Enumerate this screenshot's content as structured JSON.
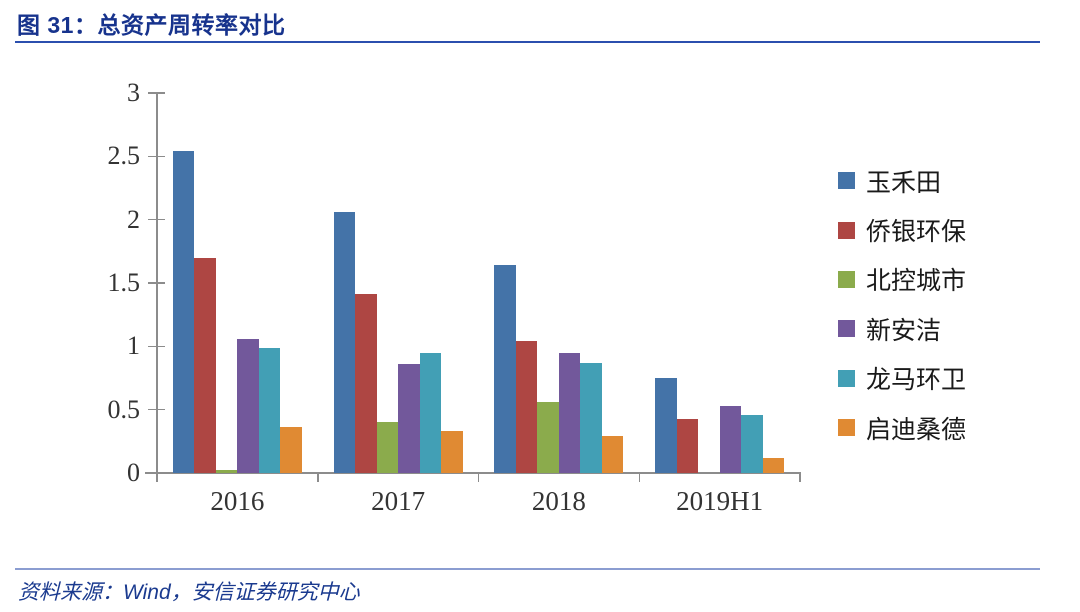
{
  "header": {
    "title": "图 31：总资产周转率对比"
  },
  "footer": {
    "source": "资料来源：Wind，安信证券研究中心"
  },
  "colors": {
    "title_text": "#17338d",
    "title_rule": "#2b4fae",
    "footer_rule": "#8b9dd1",
    "source_text": "#1a3a8f",
    "axis": "#8c8c8c",
    "axis_text": "#333333"
  },
  "chart_data": {
    "type": "bar",
    "title": "总资产周转率对比",
    "categories": [
      "2016",
      "2017",
      "2018",
      "2019H1"
    ],
    "series": [
      {
        "name": "玉禾田",
        "color": "#4473a8",
        "values": [
          2.54,
          2.06,
          1.64,
          0.75
        ]
      },
      {
        "name": "侨银环保",
        "color": "#ae4643",
        "values": [
          1.7,
          1.41,
          1.04,
          0.43
        ]
      },
      {
        "name": "北控城市",
        "color": "#8bab4c",
        "values": [
          0.02,
          0.4,
          0.56,
          0.0
        ]
      },
      {
        "name": "新安洁",
        "color": "#72589b",
        "values": [
          1.06,
          0.86,
          0.95,
          0.53
        ]
      },
      {
        "name": "龙马环卫",
        "color": "#429fb5",
        "values": [
          0.99,
          0.95,
          0.87,
          0.46
        ]
      },
      {
        "name": "启迪桑德",
        "color": "#e08a33",
        "values": [
          0.36,
          0.33,
          0.29,
          0.12
        ]
      }
    ],
    "xlabel": "",
    "ylabel": "",
    "ylim": [
      0,
      3
    ],
    "ytick_step": 0.5,
    "yticks": [
      "0",
      "0.5",
      "1",
      "1.5",
      "2",
      "2.5",
      "3"
    ],
    "grid": false,
    "legend_position": "right"
  }
}
